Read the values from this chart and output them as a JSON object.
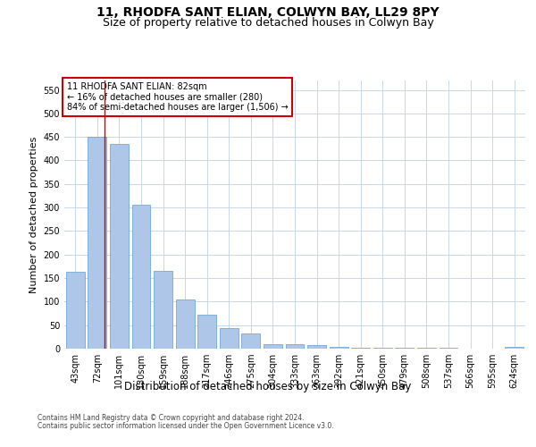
{
  "title": "11, RHODFA SANT ELIAN, COLWYN BAY, LL29 8PY",
  "subtitle": "Size of property relative to detached houses in Colwyn Bay",
  "xlabel": "Distribution of detached houses by size in Colwyn Bay",
  "ylabel": "Number of detached properties",
  "categories": [
    "43sqm",
    "72sqm",
    "101sqm",
    "130sqm",
    "159sqm",
    "188sqm",
    "217sqm",
    "246sqm",
    "275sqm",
    "304sqm",
    "333sqm",
    "363sqm",
    "392sqm",
    "421sqm",
    "450sqm",
    "479sqm",
    "508sqm",
    "537sqm",
    "566sqm",
    "595sqm",
    "624sqm"
  ],
  "values": [
    163,
    450,
    435,
    305,
    165,
    105,
    73,
    44,
    33,
    10,
    10,
    8,
    4,
    2,
    1,
    1,
    1,
    1,
    0,
    0,
    4
  ],
  "bar_color": "#aec6e8",
  "bar_edge_color": "#5a9fd4",
  "grid_color": "#c8d8e8",
  "background_color": "#ffffff",
  "annotation_text": "11 RHODFA SANT ELIAN: 82sqm\n← 16% of detached houses are smaller (280)\n84% of semi-detached houses are larger (1,506) →",
  "annotation_box_color": "#ffffff",
  "annotation_box_edge": "#cc0000",
  "red_line_x": 1.33,
  "ylim": [
    0,
    570
  ],
  "yticks": [
    0,
    50,
    100,
    150,
    200,
    250,
    300,
    350,
    400,
    450,
    500,
    550
  ],
  "footer1": "Contains HM Land Registry data © Crown copyright and database right 2024.",
  "footer2": "Contains public sector information licensed under the Open Government Licence v3.0.",
  "title_fontsize": 10,
  "subtitle_fontsize": 9,
  "tick_fontsize": 7,
  "ylabel_fontsize": 8,
  "xlabel_fontsize": 8.5,
  "annotation_fontsize": 7,
  "footer_fontsize": 5.5
}
